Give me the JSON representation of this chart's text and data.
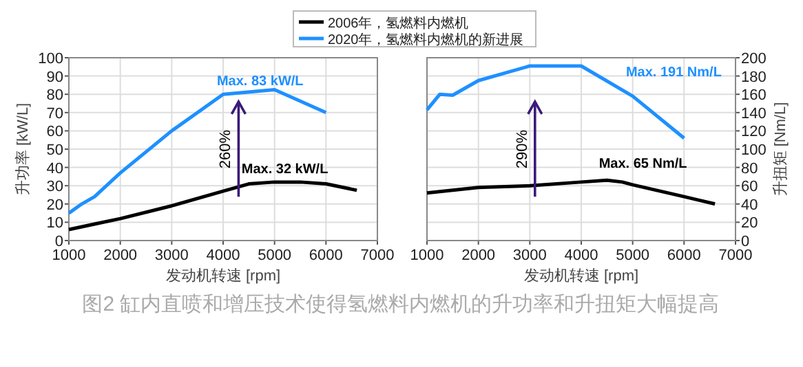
{
  "chart_data": [
    {
      "type": "line",
      "xlabel": "发动机转速 [rpm]",
      "ylabel": "升功率 [kW/L]",
      "xlim": [
        1000,
        7000
      ],
      "xticks": [
        1000,
        2000,
        3000,
        4000,
        5000,
        6000,
        7000
      ],
      "ylim": [
        0,
        100
      ],
      "yticks": [
        0,
        10,
        20,
        30,
        40,
        50,
        60,
        70,
        80,
        90,
        100
      ],
      "grid": true,
      "legend": "top",
      "marker": "none",
      "series": [
        {
          "name": "2006年，氢燃料内燃机",
          "color": "#000000",
          "x": [
            1000,
            1500,
            2000,
            3000,
            4000,
            4500,
            5000,
            5500,
            6000,
            6600
          ],
          "values": [
            6,
            9,
            12,
            19,
            27,
            31,
            32,
            32,
            31,
            27.5
          ]
        },
        {
          "name": "2020年，氢燃料内燃机的新进展",
          "color": "#1e90ff",
          "x": [
            1000,
            1250,
            1500,
            2000,
            3000,
            4000,
            5000,
            6000
          ],
          "values": [
            15,
            20,
            24,
            37,
            60,
            80,
            82.5,
            70
          ]
        }
      ],
      "annotations": [
        "Max. 83 kW/L",
        "Max. 32 kW/L",
        "260%",
        "图2 缸内直喷和增压技术使得氢燃料内燃机的升功率和升扭矩大幅提高"
      ]
    },
    {
      "type": "line",
      "xlabel": "发动机转速 [rpm]",
      "y2label": "升扭矩 [Nm/L]",
      "xlim": [
        1000,
        7000
      ],
      "xticks": [
        1000,
        2000,
        3000,
        4000,
        5000,
        6000,
        7000
      ],
      "y2lim": [
        0,
        200
      ],
      "y2ticks": [
        0,
        20,
        40,
        60,
        80,
        100,
        120,
        140,
        160,
        180,
        200
      ],
      "grid": true,
      "marker": "none",
      "series": [
        {
          "color": "#000000",
          "axis": "y2",
          "x": [
            1000,
            2000,
            3000,
            4000,
            4500,
            4800,
            5000,
            6000,
            6600
          ],
          "values": [
            52,
            58,
            60,
            64,
            66,
            64,
            61,
            48,
            40
          ]
        },
        {
          "color": "#1e90ff",
          "axis": "y2",
          "x": [
            1000,
            1250,
            1500,
            2000,
            3000,
            4000,
            5000,
            6000
          ],
          "values": [
            143,
            160,
            159,
            175,
            191,
            191,
            158,
            112
          ]
        }
      ],
      "annotations": [
        "Max. 191 Nm/L",
        "Max. 65 Nm/L",
        "290%"
      ]
    }
  ]
}
